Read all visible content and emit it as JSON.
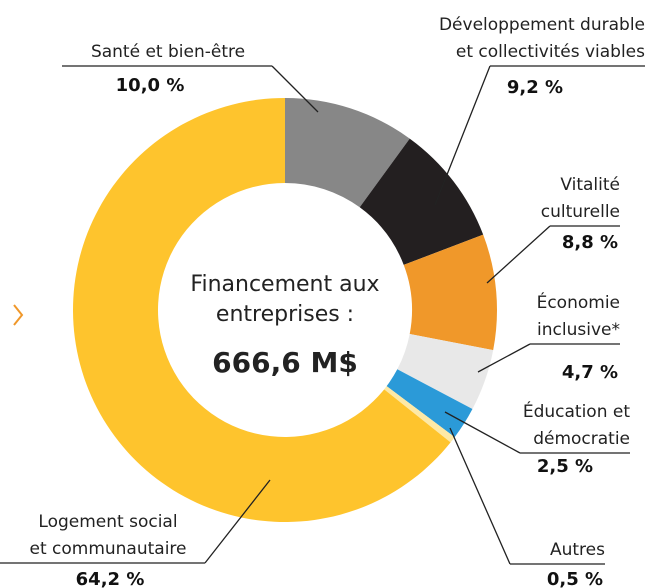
{
  "chart_data": {
    "type": "donut",
    "center_label": [
      "Financement aux",
      "entreprises :"
    ],
    "total_label": "666,6 M$",
    "categories": [
      [
        "Santé et bien-être"
      ],
      [
        "Développement durable",
        "et collectivités viables"
      ],
      [
        "Vitalité",
        "culturelle"
      ],
      [
        "Économie",
        "inclusive*"
      ],
      [
        "Éducation et",
        "démocratie"
      ],
      [
        "Autres"
      ],
      [
        "Logement social",
        "et communautaire"
      ]
    ],
    "values": [
      10.0,
      9.2,
      8.8,
      4.7,
      2.5,
      0.5,
      64.2
    ],
    "value_labels": [
      "10,0 %",
      "9,2 %",
      "8,8 %",
      "4,7 %",
      "2,5 %",
      "0,5 %",
      "64,2 %"
    ],
    "colors": [
      "#878787",
      "#231f20",
      "#f0982a",
      "#e8e8e8",
      "#2b9ad8",
      "#fde9a6",
      "#fec42d"
    ]
  }
}
